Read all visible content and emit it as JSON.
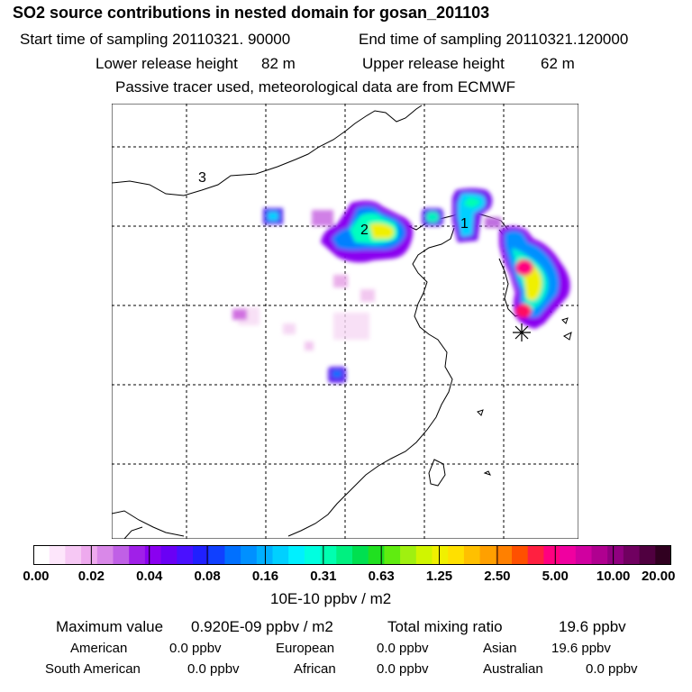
{
  "header": {
    "title": "SO2 source contributions in nested domain for gosan_201103",
    "start_label": "Start time of sampling 20110321. 90000",
    "end_label": "End time of sampling 20110321.120000",
    "lower_label": "Lower release height",
    "lower_value": "82 m",
    "upper_label": "Upper release height",
    "upper_value": "62 m",
    "note": "Passive tracer used, meteorological data are from ECMWF"
  },
  "map": {
    "region_labels": [
      "1",
      "2",
      "3"
    ],
    "receptor_marker": "asterisk-marker"
  },
  "colorbar": {
    "ticks": [
      "0.00",
      "0.02",
      "0.04",
      "0.08",
      "0.16",
      "0.31",
      "0.63",
      "1.25",
      "2.50",
      "5.00",
      "10.00",
      "20.00"
    ],
    "colors": [
      "#ffffff",
      "#fde6fb",
      "#f6c8f4",
      "#eeaaee",
      "#d988e8",
      "#c060e6",
      "#a020e8",
      "#8a00f0",
      "#6a00f5",
      "#4a10ff",
      "#2020ff",
      "#1040ff",
      "#0070ff",
      "#0090ff",
      "#00b0ff",
      "#00d0ff",
      "#00f0ff",
      "#00ffe0",
      "#00ffb0",
      "#00f080",
      "#00e050",
      "#20e020",
      "#60ec10",
      "#a0f010",
      "#d0f500",
      "#f0f000",
      "#ffe000",
      "#ffc000",
      "#ffa000",
      "#ff8000",
      "#ff5000",
      "#ff2040",
      "#ff0080",
      "#f000a0",
      "#d000a0",
      "#b00090",
      "#900080",
      "#700060",
      "#500040",
      "#300020"
    ],
    "units": "10E-10 ppbv / m2"
  },
  "footer": {
    "max_label": "Maximum value",
    "max_value": "0.920E-09 ppbv / m2",
    "total_label": "Total mixing ratio",
    "total_value": "19.6 ppbv",
    "regions": [
      {
        "name": "American",
        "value": "0.0 ppbv"
      },
      {
        "name": "European",
        "value": "0.0 ppbv"
      },
      {
        "name": "Asian",
        "value": "19.6 ppbv"
      },
      {
        "name": "South American",
        "value": "0.0 ppbv"
      },
      {
        "name": "African",
        "value": "0.0 ppbv"
      },
      {
        "name": "Australian",
        "value": "0.0 ppbv"
      }
    ]
  }
}
